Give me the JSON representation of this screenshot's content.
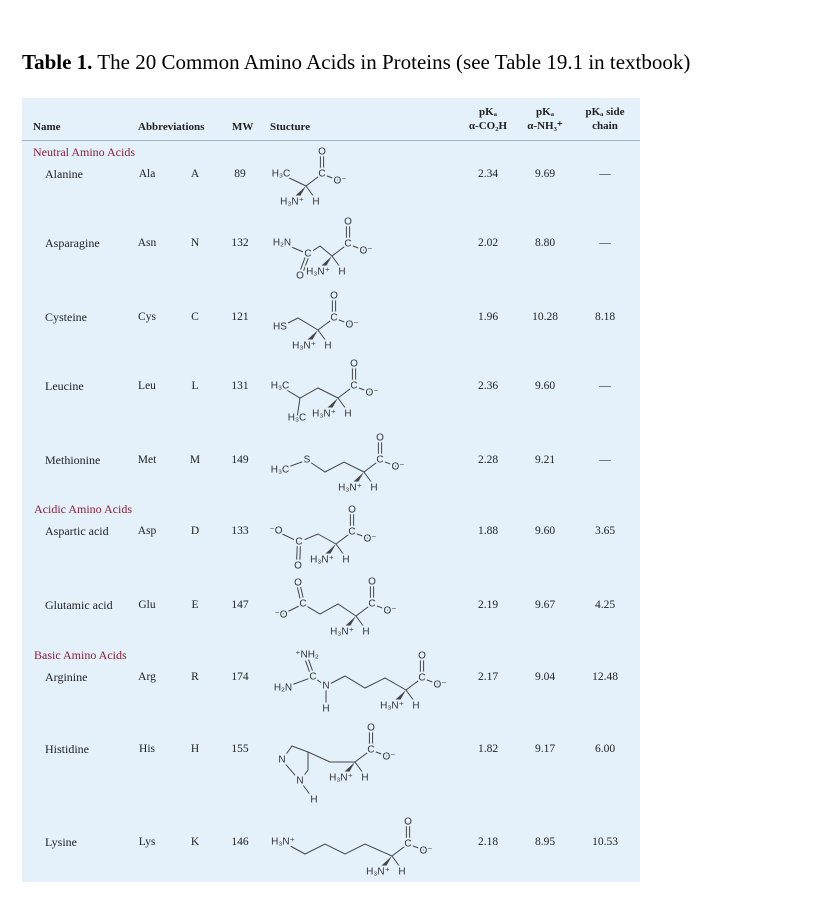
{
  "title": {
    "label": "Table 1.",
    "text": "The 20 Common Amino Acids in Proteins (see Table 19.1 in textbook)"
  },
  "table": {
    "columns": [
      "Name",
      "Abbreviations",
      "MW",
      "Stucture",
      {
        "top": "pKₐ",
        "bottom": "α-CO₂H"
      },
      {
        "top": "pKₐ",
        "bottom": "α-NH₃⁺"
      },
      {
        "top": "pKₐ side",
        "bottom": "chain"
      }
    ],
    "groups": [
      {
        "name": "Neutral Amino Acids",
        "rows": [
          {
            "name": "Alanine",
            "three": "Ala",
            "one": "A",
            "mw": 89,
            "side": [
              "H₃C"
            ],
            "backbone": [
              "C",
              "O",
              "O⁻",
              "H₃N⁺",
              "H"
            ],
            "pka_co2h": "2.34",
            "pka_nh3": "9.69",
            "pka_side": "—"
          },
          {
            "name": "Asparagine",
            "three": "Asn",
            "one": "N",
            "mw": 132,
            "side": [
              "H₂N",
              "C",
              "O"
            ],
            "backbone": [
              "C",
              "O",
              "O⁻",
              "H₃N⁺",
              "H"
            ],
            "pka_co2h": "2.02",
            "pka_nh3": "8.80",
            "pka_side": "—"
          },
          {
            "name": "Cysteine",
            "three": "Cys",
            "one": "C",
            "mw": 121,
            "side": [
              "HS"
            ],
            "backbone": [
              "C",
              "O",
              "O⁻",
              "H₃N⁺",
              "H"
            ],
            "pka_co2h": "1.96",
            "pka_nh3": "10.28",
            "pka_side": "8.18"
          },
          {
            "name": "Leucine",
            "three": "Leu",
            "one": "L",
            "mw": 131,
            "side": [
              "H₃C",
              "H₃C"
            ],
            "backbone": [
              "C",
              "O",
              "O⁻",
              "H₃N⁺",
              "H"
            ],
            "pka_co2h": "2.36",
            "pka_nh3": "9.60",
            "pka_side": "—"
          },
          {
            "name": "Methionine",
            "three": "Met",
            "one": "M",
            "mw": 149,
            "side": [
              "H₃C",
              "S"
            ],
            "backbone": [
              "C",
              "O",
              "O⁻",
              "H₃N⁺",
              "H"
            ],
            "pka_co2h": "2.28",
            "pka_nh3": "9.21",
            "pka_side": "—"
          }
        ]
      },
      {
        "name": "Acidic Amino Acids",
        "rows": [
          {
            "name": "Aspartic acid",
            "three": "Asp",
            "one": "D",
            "mw": 133,
            "side": [
              "⁻O",
              "C",
              "O"
            ],
            "backbone": [
              "C",
              "O",
              "O⁻",
              "H₃N⁺",
              "H"
            ],
            "pka_co2h": "1.88",
            "pka_nh3": "9.60",
            "pka_side": "3.65"
          },
          {
            "name": "Glutamic acid",
            "three": "Glu",
            "one": "E",
            "mw": 147,
            "side": [
              "⁻O",
              "C",
              "O"
            ],
            "backbone": [
              "C",
              "O",
              "O⁻",
              "H₃N⁺",
              "H"
            ],
            "pka_co2h": "2.19",
            "pka_nh3": "9.67",
            "pka_side": "4.25"
          }
        ]
      },
      {
        "name": "Basic Amino Acids",
        "rows": [
          {
            "name": "Arginine",
            "three": "Arg",
            "one": "R",
            "mw": 174,
            "side": [
              "⁺NH₂",
              "C",
              "H₂N",
              "N",
              "H"
            ],
            "backbone": [
              "C",
              "O",
              "O⁻",
              "H₃N⁺",
              "H"
            ],
            "pka_co2h": "2.17",
            "pka_nh3": "9.04",
            "pka_side": "12.48"
          },
          {
            "name": "Histidine",
            "three": "His",
            "one": "H",
            "mw": 155,
            "side": [
              "N",
              "N",
              "H"
            ],
            "backbone": [
              "C",
              "O",
              "O⁻",
              "H₃N⁺",
              "H"
            ],
            "pka_co2h": "1.82",
            "pka_nh3": "9.17",
            "pka_side": "6.00"
          },
          {
            "name": "Lysine",
            "three": "Lys",
            "one": "K",
            "mw": 146,
            "side": [
              "H₃N⁺"
            ],
            "backbone": [
              "C",
              "O",
              "O⁻",
              "H₃N⁺",
              "H"
            ],
            "pka_co2h": "2.18",
            "pka_nh3": "8.95",
            "pka_side": "10.53"
          }
        ]
      }
    ]
  }
}
